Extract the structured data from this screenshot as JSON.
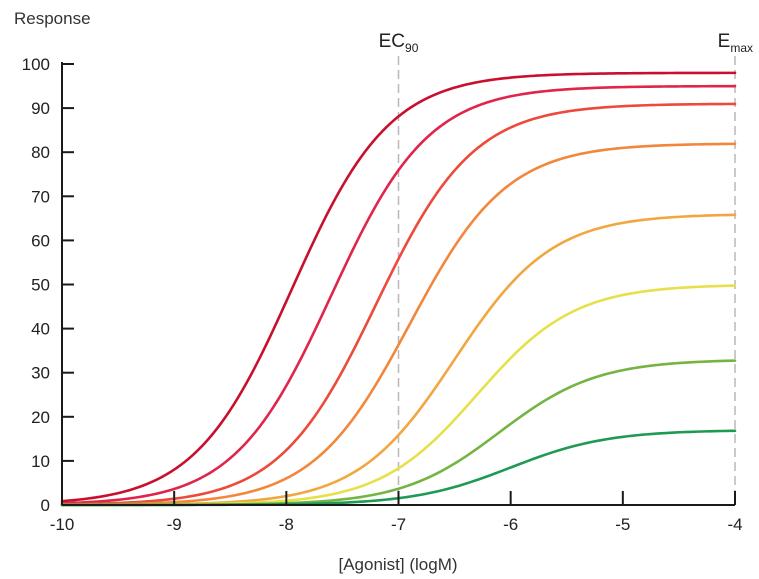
{
  "chart_data": {
    "type": "line",
    "title": "",
    "ylabel": "Response",
    "xlabel": "[Agonist] (logM)",
    "xlim": [
      -10,
      -4
    ],
    "ylim": [
      0,
      100
    ],
    "x_ticks": [
      "-10",
      "-9",
      "-8",
      "-7",
      "-6",
      "-5",
      "-4"
    ],
    "y_ticks": [
      "0",
      "10",
      "20",
      "30",
      "40",
      "50",
      "60",
      "70",
      "80",
      "90",
      "100"
    ],
    "grid": false,
    "reference_lines": [
      {
        "label_main": "EC",
        "label_sub": "90",
        "x": -7
      },
      {
        "label_main": "E",
        "label_sub": "max",
        "x": -4
      }
    ],
    "curve_model": "Hill sigmoid: response = emax / (1 + 10^(slope*(ec50 - x)))",
    "series": [
      {
        "emax": 98,
        "ec50": -7.95,
        "slope": 1.0,
        "color": "#c8102e"
      },
      {
        "emax": 95,
        "ec50": -7.6,
        "slope": 1.0,
        "color": "#e0254a"
      },
      {
        "emax": 91,
        "ec50": -7.2,
        "slope": 1.0,
        "color": "#ec4a3a"
      },
      {
        "emax": 82,
        "ec50": -6.9,
        "slope": 1.0,
        "color": "#f2873c"
      },
      {
        "emax": 66,
        "ec50": -6.5,
        "slope": 1.0,
        "color": "#f2a640"
      },
      {
        "emax": 50,
        "ec50": -6.3,
        "slope": 1.0,
        "color": "#e8e04a"
      },
      {
        "emax": 33,
        "ec50": -6.1,
        "slope": 1.0,
        "color": "#74b442"
      },
      {
        "emax": 17,
        "ec50": -6.0,
        "slope": 1.0,
        "color": "#1f9a54"
      }
    ]
  }
}
